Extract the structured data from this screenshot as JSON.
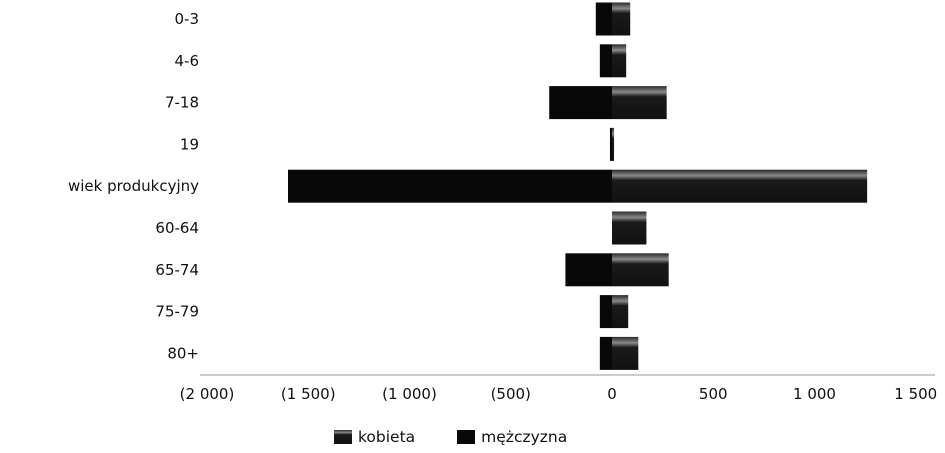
{
  "chart_data": {
    "type": "bar",
    "orientation": "horizontal",
    "layout": "population-pyramid",
    "categories": [
      "0-3",
      "4-6",
      "7-18",
      "19",
      "wiek produkcyjny",
      "60-64",
      "65-74",
      "75-79",
      "80+"
    ],
    "series": [
      {
        "name": "kobieta",
        "color": "#1a1a1a",
        "values": [
          90,
          70,
          270,
          10,
          1260,
          170,
          280,
          80,
          130
        ]
      },
      {
        "name": "mężczyzna",
        "color": "#080808",
        "values": [
          -80,
          -60,
          -310,
          -10,
          -1600,
          0,
          -230,
          -60,
          -60
        ]
      }
    ],
    "xlim": [
      -2000,
      1500
    ],
    "x_ticks": [
      -2000,
      -1500,
      -1000,
      -500,
      0,
      500,
      1000,
      1500
    ],
    "x_tick_labels": [
      "(2 000)",
      "(1 500)",
      "(1 000)",
      "(500)",
      "0",
      "500",
      "1 000",
      "1 500"
    ],
    "title": "",
    "xlabel": "",
    "ylabel": "",
    "grid": false,
    "legend_position": "bottom"
  }
}
